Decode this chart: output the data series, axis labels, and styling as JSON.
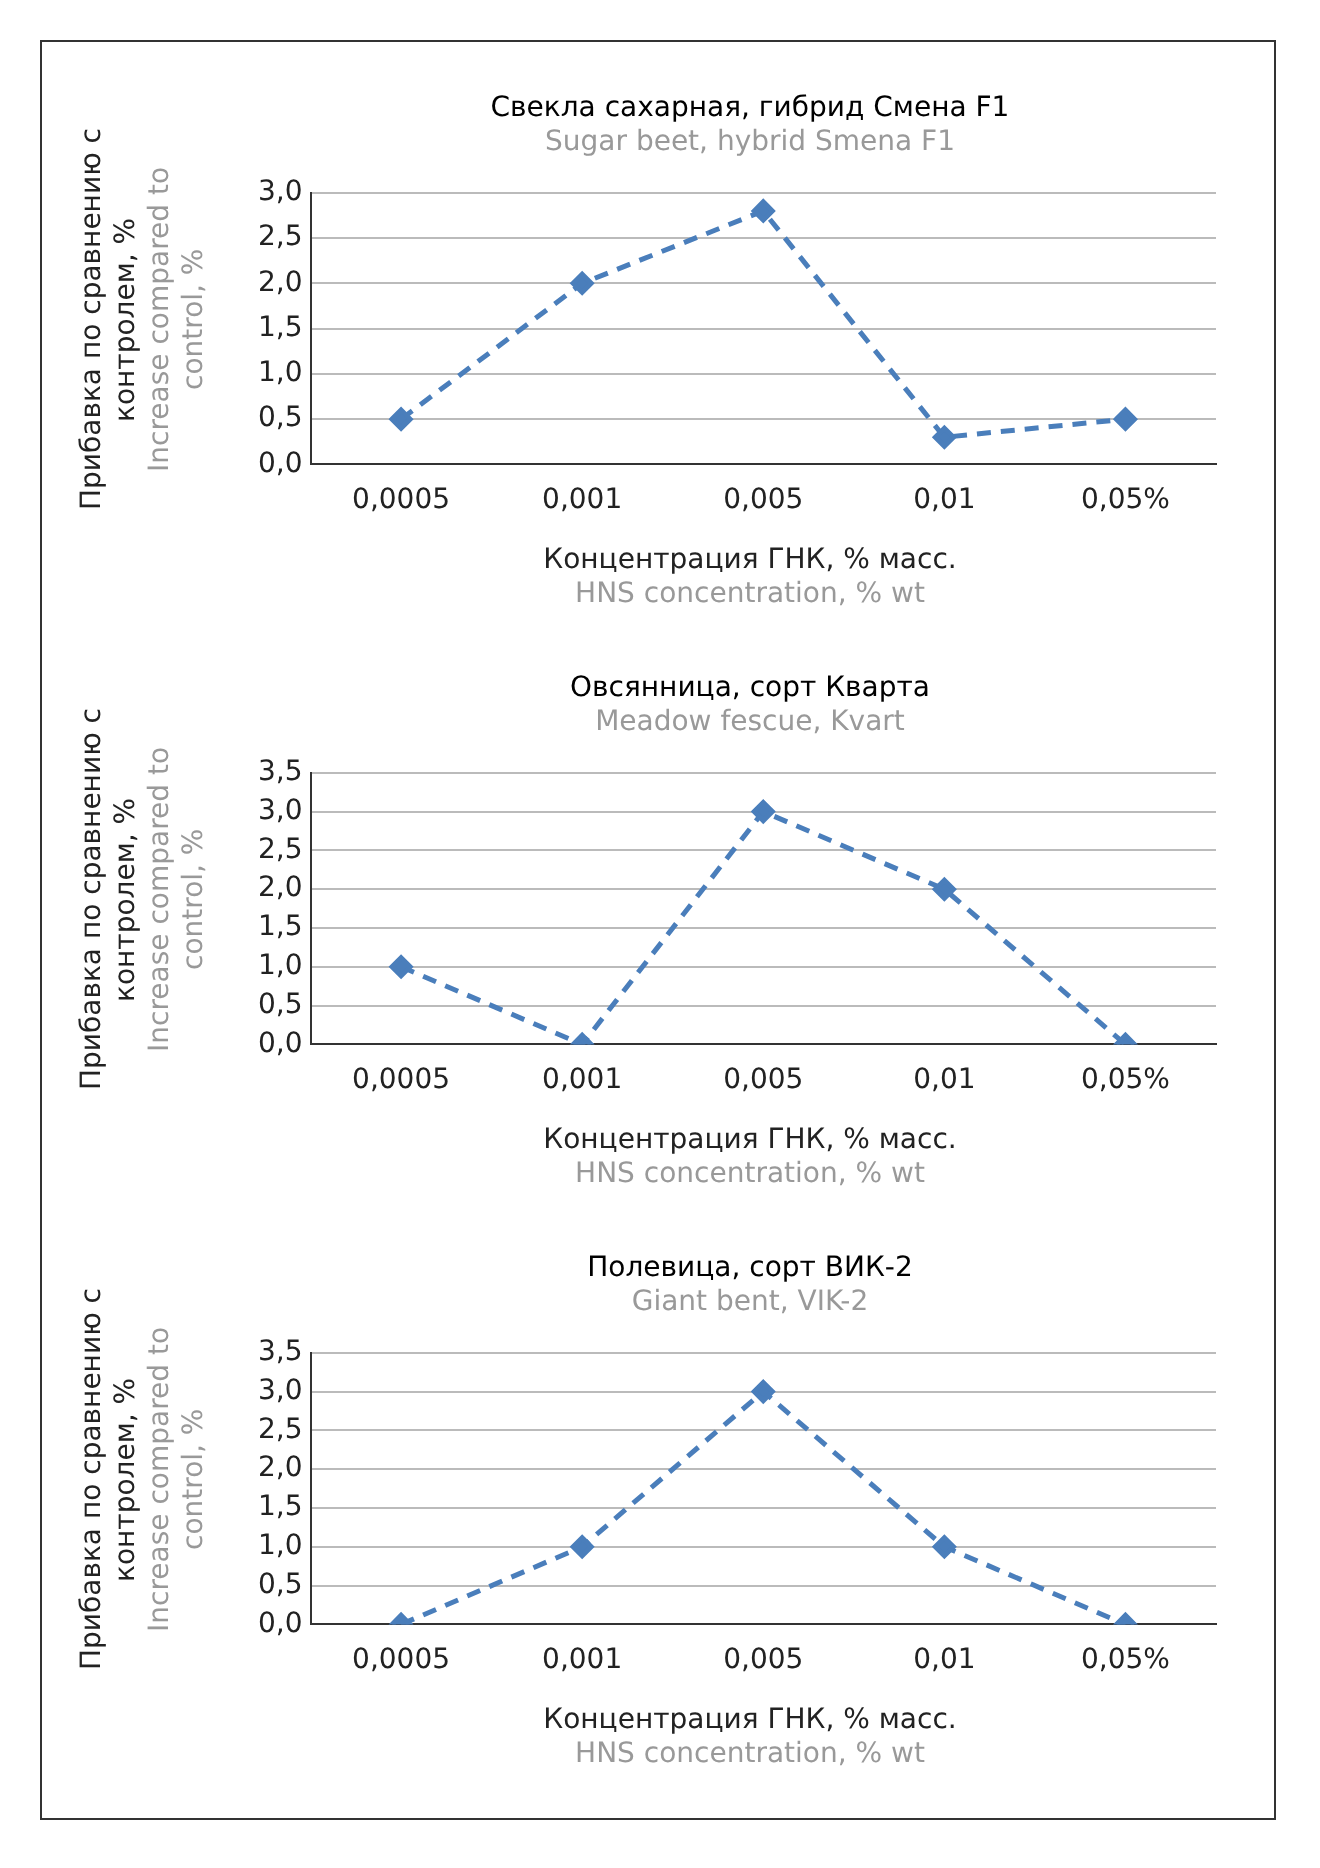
{
  "chart_data": [
    {
      "type": "line",
      "title": "Свекла сахарная, гибрид Смена F1",
      "subtitle": "Sugar beet, hybrid Smena F1",
      "xlabel": "Концентрация ГНК, % масс.",
      "ylabel": "Прибавка по сравнению с контролем, %",
      "annotations": [
        "Increase compared to control, %",
        "HNS concentration, % wt"
      ],
      "categories": [
        "0,0005",
        "0,001",
        "0,005",
        "0,01",
        "0,05%"
      ],
      "values": [
        0.5,
        2.0,
        2.8,
        0.3,
        0.5
      ],
      "color": "#4a7ebb",
      "marker": "diamond",
      "line_style": "dashed",
      "grid": "y",
      "ylim": [
        0,
        3
      ],
      "yticks": [
        {
          "value": 0,
          "label": "0,0"
        },
        {
          "value": 0.5,
          "label": "0,5"
        },
        {
          "value": 1,
          "label": "1,0"
        },
        {
          "value": 1.5,
          "label": "1,5"
        },
        {
          "value": 2,
          "label": "2,0"
        },
        {
          "value": 2.5,
          "label": "2,5"
        },
        {
          "value": 3,
          "label": "3,0"
        }
      ]
    },
    {
      "type": "line",
      "title": "Овсянница, сорт Кварта",
      "subtitle": "Meadow fescue, Kvart",
      "xlabel": "Концентрация ГНК, % масс.",
      "ylabel": "Прибавка по сравнению с контролем, %",
      "annotations": [
        "Increase compared to control, %",
        "HNS concentration, % wt"
      ],
      "categories": [
        "0,0005",
        "0,001",
        "0,005",
        "0,01",
        "0,05%"
      ],
      "values": [
        1.0,
        0.0,
        3.0,
        2.0,
        0.0
      ],
      "color": "#4a7ebb",
      "marker": "diamond",
      "line_style": "dashed",
      "grid": "y",
      "ylim": [
        0,
        3.5
      ],
      "yticks": [
        {
          "value": 0,
          "label": "0,0"
        },
        {
          "value": 0.5,
          "label": "0,5"
        },
        {
          "value": 1,
          "label": "1,0"
        },
        {
          "value": 1.5,
          "label": "1,5"
        },
        {
          "value": 2,
          "label": "2,0"
        },
        {
          "value": 2.5,
          "label": "2,5"
        },
        {
          "value": 3,
          "label": "3,0"
        },
        {
          "value": 3.5,
          "label": "3,5"
        }
      ]
    },
    {
      "type": "line",
      "title": "Полевица, сорт ВИК-2",
      "subtitle": "Giant bent, VIK-2",
      "xlabel": "Концентрация ГНК, % масс.",
      "ylabel": "Прибавка по сравнению с контролем, %",
      "annotations": [
        "Increase compared to control, %",
        "HNS concentration, % wt"
      ],
      "categories": [
        "0,0005",
        "0,001",
        "0,005",
        "0,01",
        "0,05%"
      ],
      "values": [
        0.0,
        1.0,
        3.0,
        1.0,
        0.0
      ],
      "color": "#4a7ebb",
      "marker": "diamond",
      "line_style": "dashed",
      "grid": "y",
      "ylim": [
        0,
        3.5
      ],
      "yticks": [
        {
          "value": 0,
          "label": "0,0"
        },
        {
          "value": 0.5,
          "label": "0,5"
        },
        {
          "value": 1,
          "label": "1,0"
        },
        {
          "value": 1.5,
          "label": "1,5"
        },
        {
          "value": 2,
          "label": "2,0"
        },
        {
          "value": 2.5,
          "label": "2,5"
        },
        {
          "value": 3,
          "label": "3,0"
        },
        {
          "value": 3.5,
          "label": "3,5"
        }
      ]
    }
  ]
}
